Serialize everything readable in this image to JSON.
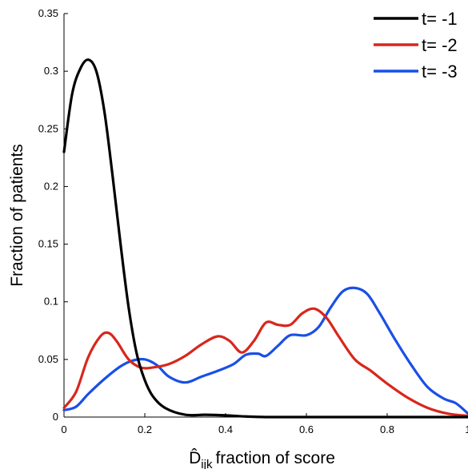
{
  "chart_data": {
    "type": "line",
    "xlabel": {
      "symbol": "D̂",
      "subscript": "ijk",
      "text": "fraction of score"
    },
    "ylabel": "Fraction of patients",
    "xlim": [
      0,
      1
    ],
    "ylim": [
      0,
      0.35
    ],
    "x_ticks": [
      0,
      0.2,
      0.4,
      0.6,
      0.8,
      1
    ],
    "x_tick_labels": [
      "0",
      "0.2",
      "0.4",
      "0.6",
      "0.8",
      "1"
    ],
    "y_ticks": [
      0,
      0.05,
      0.1,
      0.15,
      0.2,
      0.25,
      0.3,
      0.35
    ],
    "y_tick_labels": [
      "0",
      "0.05",
      "0.1",
      "0.15",
      "0.2",
      "0.25",
      "0.3",
      "0.35"
    ],
    "grid": false,
    "legend_position": "top-right",
    "series": [
      {
        "name": "t= -1",
        "color": "#000000",
        "x": [
          0,
          0.02,
          0.04,
          0.06,
          0.08,
          0.1,
          0.12,
          0.14,
          0.16,
          0.18,
          0.2,
          0.22,
          0.25,
          0.3,
          0.35,
          0.4,
          0.45,
          0.5,
          0.6,
          0.7,
          0.8,
          0.9,
          1.0
        ],
        "y": [
          0.23,
          0.28,
          0.302,
          0.31,
          0.3,
          0.265,
          0.21,
          0.15,
          0.095,
          0.055,
          0.032,
          0.018,
          0.008,
          0.002,
          0.002,
          0.0015,
          0.0005,
          0,
          0,
          0,
          0,
          0,
          0
        ]
      },
      {
        "name": "t= -2",
        "color": "#d9261c",
        "x": [
          0,
          0.03,
          0.06,
          0.09,
          0.11,
          0.13,
          0.16,
          0.19,
          0.22,
          0.26,
          0.3,
          0.34,
          0.38,
          0.41,
          0.44,
          0.47,
          0.5,
          0.53,
          0.56,
          0.59,
          0.62,
          0.65,
          0.68,
          0.72,
          0.76,
          0.8,
          0.85,
          0.9,
          0.95,
          1.0
        ],
        "y": [
          0.008,
          0.022,
          0.052,
          0.07,
          0.073,
          0.066,
          0.05,
          0.043,
          0.043,
          0.046,
          0.053,
          0.063,
          0.07,
          0.066,
          0.056,
          0.066,
          0.082,
          0.08,
          0.08,
          0.09,
          0.094,
          0.086,
          0.07,
          0.05,
          0.04,
          0.029,
          0.017,
          0.008,
          0.003,
          0.001
        ]
      },
      {
        "name": "t= -3",
        "color": "#1a4fe6",
        "x": [
          0,
          0.03,
          0.06,
          0.1,
          0.14,
          0.17,
          0.2,
          0.23,
          0.26,
          0.3,
          0.34,
          0.38,
          0.42,
          0.45,
          0.48,
          0.5,
          0.53,
          0.56,
          0.6,
          0.63,
          0.66,
          0.69,
          0.72,
          0.75,
          0.78,
          0.82,
          0.86,
          0.9,
          0.94,
          0.97,
          1.0
        ],
        "y": [
          0.006,
          0.009,
          0.02,
          0.033,
          0.044,
          0.049,
          0.05,
          0.045,
          0.035,
          0.03,
          0.035,
          0.04,
          0.046,
          0.054,
          0.055,
          0.053,
          0.062,
          0.071,
          0.071,
          0.078,
          0.095,
          0.109,
          0.112,
          0.107,
          0.091,
          0.067,
          0.045,
          0.026,
          0.016,
          0.012,
          0.003
        ]
      }
    ]
  }
}
